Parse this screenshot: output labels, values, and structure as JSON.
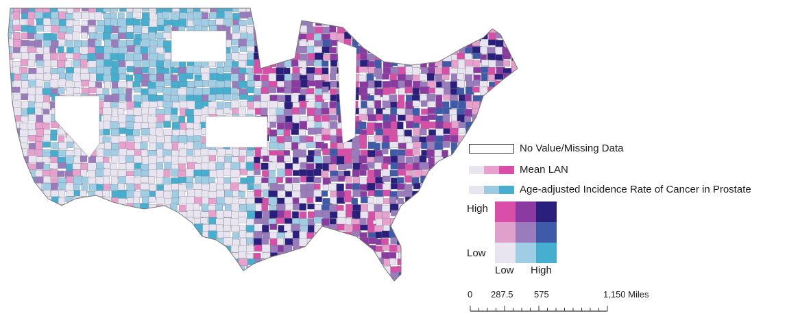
{
  "legend": {
    "no_data": {
      "label": "No Value/Missing Data"
    },
    "mean_lan": {
      "label": "Mean LAN",
      "colors": [
        "#e8e4f0",
        "#e8a0cc",
        "#d94fa8"
      ]
    },
    "incidence": {
      "label": "Age-adjusted Incidence Rate of Cancer in Prostate",
      "colors": [
        "#e8e4f0",
        "#9ccbe0",
        "#46afd0"
      ]
    },
    "bivariate_colors": [
      [
        "#d94fa8",
        "#8a3aa0",
        "#2b1f7e"
      ],
      [
        "#e0a0cc",
        "#9a7cbc",
        "#3f5aa8"
      ],
      [
        "#e8e4f0",
        "#9fcde3",
        "#46afd0"
      ]
    ],
    "axis": {
      "y_high": "High",
      "y_low": "Low",
      "x_low": "Low",
      "x_high": "High"
    }
  },
  "scale_bar": {
    "labels": [
      "0",
      "287.5",
      "575",
      "1,150 Miles"
    ]
  },
  "map": {
    "palette": [
      "#e8e4f0",
      "#e8a0cc",
      "#d94fa8",
      "#9fcde3",
      "#9a7cbc",
      "#8a3aa0",
      "#46afd0",
      "#3f5aa8",
      "#2b1f7e",
      "#ffffff"
    ]
  }
}
